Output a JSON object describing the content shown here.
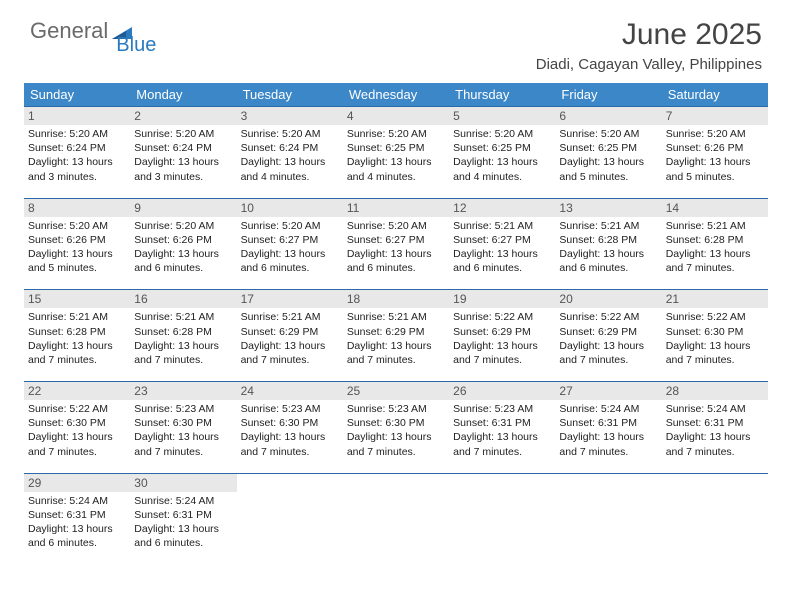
{
  "logo": {
    "word1": "General",
    "word2": "Blue"
  },
  "title": "June 2025",
  "location": "Diadi, Cagayan Valley, Philippines",
  "colors": {
    "header_bg": "#3b87c8",
    "week_divider": "#2a6aa8",
    "daynum_bg": "#e8e8e8",
    "logo_gray": "#6a6a6a",
    "logo_blue": "#2a7abf"
  },
  "weekdays": [
    "Sunday",
    "Monday",
    "Tuesday",
    "Wednesday",
    "Thursday",
    "Friday",
    "Saturday"
  ],
  "weeks": [
    [
      {
        "n": "1",
        "sr": "Sunrise: 5:20 AM",
        "ss": "Sunset: 6:24 PM",
        "d1": "Daylight: 13 hours",
        "d2": "and 3 minutes."
      },
      {
        "n": "2",
        "sr": "Sunrise: 5:20 AM",
        "ss": "Sunset: 6:24 PM",
        "d1": "Daylight: 13 hours",
        "d2": "and 3 minutes."
      },
      {
        "n": "3",
        "sr": "Sunrise: 5:20 AM",
        "ss": "Sunset: 6:24 PM",
        "d1": "Daylight: 13 hours",
        "d2": "and 4 minutes."
      },
      {
        "n": "4",
        "sr": "Sunrise: 5:20 AM",
        "ss": "Sunset: 6:25 PM",
        "d1": "Daylight: 13 hours",
        "d2": "and 4 minutes."
      },
      {
        "n": "5",
        "sr": "Sunrise: 5:20 AM",
        "ss": "Sunset: 6:25 PM",
        "d1": "Daylight: 13 hours",
        "d2": "and 4 minutes."
      },
      {
        "n": "6",
        "sr": "Sunrise: 5:20 AM",
        "ss": "Sunset: 6:25 PM",
        "d1": "Daylight: 13 hours",
        "d2": "and 5 minutes."
      },
      {
        "n": "7",
        "sr": "Sunrise: 5:20 AM",
        "ss": "Sunset: 6:26 PM",
        "d1": "Daylight: 13 hours",
        "d2": "and 5 minutes."
      }
    ],
    [
      {
        "n": "8",
        "sr": "Sunrise: 5:20 AM",
        "ss": "Sunset: 6:26 PM",
        "d1": "Daylight: 13 hours",
        "d2": "and 5 minutes."
      },
      {
        "n": "9",
        "sr": "Sunrise: 5:20 AM",
        "ss": "Sunset: 6:26 PM",
        "d1": "Daylight: 13 hours",
        "d2": "and 6 minutes."
      },
      {
        "n": "10",
        "sr": "Sunrise: 5:20 AM",
        "ss": "Sunset: 6:27 PM",
        "d1": "Daylight: 13 hours",
        "d2": "and 6 minutes."
      },
      {
        "n": "11",
        "sr": "Sunrise: 5:20 AM",
        "ss": "Sunset: 6:27 PM",
        "d1": "Daylight: 13 hours",
        "d2": "and 6 minutes."
      },
      {
        "n": "12",
        "sr": "Sunrise: 5:21 AM",
        "ss": "Sunset: 6:27 PM",
        "d1": "Daylight: 13 hours",
        "d2": "and 6 minutes."
      },
      {
        "n": "13",
        "sr": "Sunrise: 5:21 AM",
        "ss": "Sunset: 6:28 PM",
        "d1": "Daylight: 13 hours",
        "d2": "and 6 minutes."
      },
      {
        "n": "14",
        "sr": "Sunrise: 5:21 AM",
        "ss": "Sunset: 6:28 PM",
        "d1": "Daylight: 13 hours",
        "d2": "and 7 minutes."
      }
    ],
    [
      {
        "n": "15",
        "sr": "Sunrise: 5:21 AM",
        "ss": "Sunset: 6:28 PM",
        "d1": "Daylight: 13 hours",
        "d2": "and 7 minutes."
      },
      {
        "n": "16",
        "sr": "Sunrise: 5:21 AM",
        "ss": "Sunset: 6:28 PM",
        "d1": "Daylight: 13 hours",
        "d2": "and 7 minutes."
      },
      {
        "n": "17",
        "sr": "Sunrise: 5:21 AM",
        "ss": "Sunset: 6:29 PM",
        "d1": "Daylight: 13 hours",
        "d2": "and 7 minutes."
      },
      {
        "n": "18",
        "sr": "Sunrise: 5:21 AM",
        "ss": "Sunset: 6:29 PM",
        "d1": "Daylight: 13 hours",
        "d2": "and 7 minutes."
      },
      {
        "n": "19",
        "sr": "Sunrise: 5:22 AM",
        "ss": "Sunset: 6:29 PM",
        "d1": "Daylight: 13 hours",
        "d2": "and 7 minutes."
      },
      {
        "n": "20",
        "sr": "Sunrise: 5:22 AM",
        "ss": "Sunset: 6:29 PM",
        "d1": "Daylight: 13 hours",
        "d2": "and 7 minutes."
      },
      {
        "n": "21",
        "sr": "Sunrise: 5:22 AM",
        "ss": "Sunset: 6:30 PM",
        "d1": "Daylight: 13 hours",
        "d2": "and 7 minutes."
      }
    ],
    [
      {
        "n": "22",
        "sr": "Sunrise: 5:22 AM",
        "ss": "Sunset: 6:30 PM",
        "d1": "Daylight: 13 hours",
        "d2": "and 7 minutes."
      },
      {
        "n": "23",
        "sr": "Sunrise: 5:23 AM",
        "ss": "Sunset: 6:30 PM",
        "d1": "Daylight: 13 hours",
        "d2": "and 7 minutes."
      },
      {
        "n": "24",
        "sr": "Sunrise: 5:23 AM",
        "ss": "Sunset: 6:30 PM",
        "d1": "Daylight: 13 hours",
        "d2": "and 7 minutes."
      },
      {
        "n": "25",
        "sr": "Sunrise: 5:23 AM",
        "ss": "Sunset: 6:30 PM",
        "d1": "Daylight: 13 hours",
        "d2": "and 7 minutes."
      },
      {
        "n": "26",
        "sr": "Sunrise: 5:23 AM",
        "ss": "Sunset: 6:31 PM",
        "d1": "Daylight: 13 hours",
        "d2": "and 7 minutes."
      },
      {
        "n": "27",
        "sr": "Sunrise: 5:24 AM",
        "ss": "Sunset: 6:31 PM",
        "d1": "Daylight: 13 hours",
        "d2": "and 7 minutes."
      },
      {
        "n": "28",
        "sr": "Sunrise: 5:24 AM",
        "ss": "Sunset: 6:31 PM",
        "d1": "Daylight: 13 hours",
        "d2": "and 7 minutes."
      }
    ],
    [
      {
        "n": "29",
        "sr": "Sunrise: 5:24 AM",
        "ss": "Sunset: 6:31 PM",
        "d1": "Daylight: 13 hours",
        "d2": "and 6 minutes."
      },
      {
        "n": "30",
        "sr": "Sunrise: 5:24 AM",
        "ss": "Sunset: 6:31 PM",
        "d1": "Daylight: 13 hours",
        "d2": "and 6 minutes."
      },
      null,
      null,
      null,
      null,
      null
    ]
  ]
}
